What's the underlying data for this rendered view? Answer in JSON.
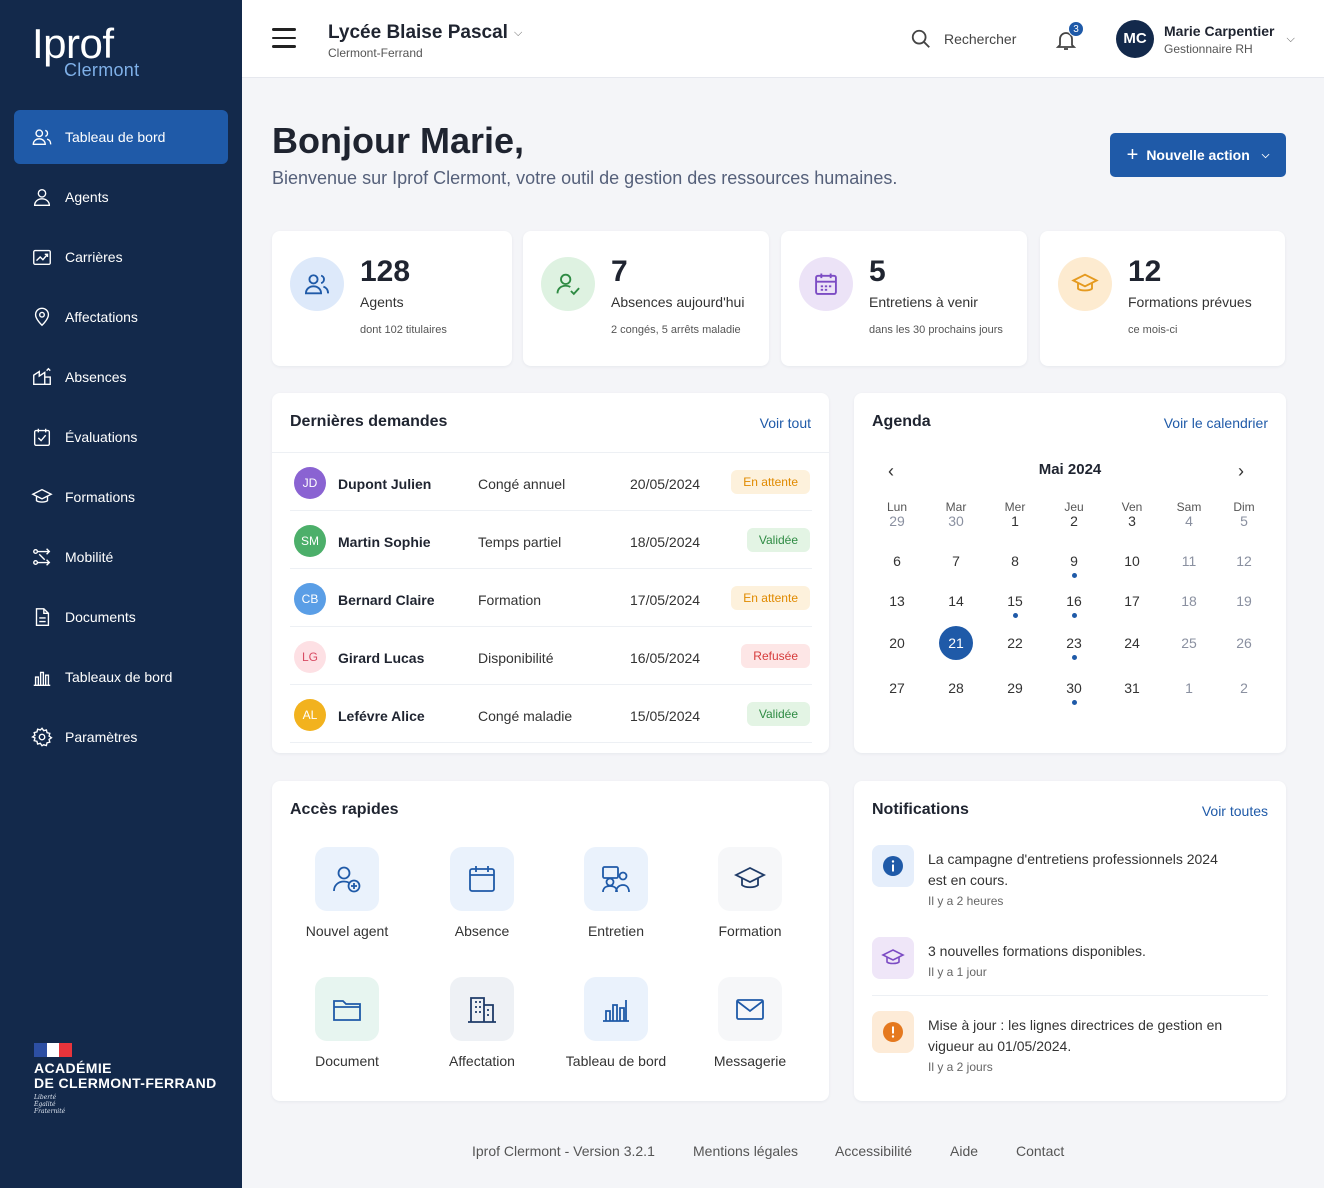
{
  "brand": {
    "name": "Iprof",
    "sub": "Clermont"
  },
  "sidebar": {
    "items": [
      {
        "label": "Tableau de bord",
        "icon": "dashboard-users-icon",
        "active": true
      },
      {
        "label": "Agents",
        "icon": "user-icon"
      },
      {
        "label": "Carrières",
        "icon": "career-chart-icon"
      },
      {
        "label": "Affectations",
        "icon": "location-pin-icon"
      },
      {
        "label": "Absences",
        "icon": "absence-icon"
      },
      {
        "label": "Évaluations",
        "icon": "evaluation-check-icon"
      },
      {
        "label": "Formations",
        "icon": "graduation-cap-icon"
      },
      {
        "label": "Mobilité",
        "icon": "mobility-arrows-icon"
      },
      {
        "label": "Documents",
        "icon": "document-icon"
      },
      {
        "label": "Tableaux de bord",
        "icon": "bar-chart-icon"
      },
      {
        "label": "Paramètres",
        "icon": "gear-icon"
      }
    ],
    "academy": {
      "line1": "ACADÉMIE",
      "line2": "DE CLERMONT-FERRAND",
      "motto": [
        "Liberté",
        "Égalité",
        "Fraternité"
      ]
    }
  },
  "header": {
    "school": "Lycée Blaise Pascal",
    "city": "Clermont-Ferrand",
    "search_label": "Rechercher",
    "notif_count": "3",
    "user": {
      "initials": "MC",
      "name": "Marie Carpentier",
      "role": "Gestionnaire RH"
    }
  },
  "main": {
    "greeting": "Bonjour Marie,",
    "subtitle": "Bienvenue sur Iprof Clermont, votre outil de gestion des ressources humaines.",
    "new_action": "Nouvelle action"
  },
  "stats": [
    {
      "value": "128",
      "label": "Agents",
      "note": "dont 102 titulaires",
      "bg": "#dde9fa",
      "fg": "#1f5aa8"
    },
    {
      "value": "7",
      "label": "Absences aujourd'hui",
      "note": "2 congés, 5 arrêts maladie",
      "bg": "#def2e1",
      "fg": "#2e8b43"
    },
    {
      "value": "5",
      "label": "Entretiens à venir",
      "note": "dans les 30 prochains jours",
      "bg": "#ece3f7",
      "fg": "#7c4cc4"
    },
    {
      "value": "12",
      "label": "Formations prévues",
      "note": "ce mois-ci",
      "bg": "#fdebd0",
      "fg": "#e59a1f"
    }
  ],
  "requests": {
    "title": "Dernières demandes",
    "link": "Voir tout",
    "rows": [
      {
        "initials": "JD",
        "name": "Dupont Julien",
        "type": "Congé annuel",
        "date": "20/05/2024",
        "status": "En attente",
        "av_color": "#8a63d2",
        "st_bg": "#fdf1dc",
        "st_fg": "#e08a00"
      },
      {
        "initials": "SM",
        "name": "Martin Sophie",
        "type": "Temps partiel",
        "date": "18/05/2024",
        "status": "Validée",
        "av_color": "#4caf6a",
        "st_bg": "#e3f4e4",
        "st_fg": "#2e8b43"
      },
      {
        "initials": "CB",
        "name": "Bernard Claire",
        "type": "Formation",
        "date": "17/05/2024",
        "status": "En attente",
        "av_color": "#5a9ee6",
        "st_bg": "#fdf1dc",
        "st_fg": "#e08a00"
      },
      {
        "initials": "LG",
        "name": "Girard Lucas",
        "type": "Disponibilité",
        "date": "16/05/2024",
        "status": "Refusée",
        "av_color": "#ef7f8f",
        "st_bg": "#fde6e6",
        "st_fg": "#d63b3b"
      },
      {
        "initials": "AL",
        "name": "Lefévre Alice",
        "type": "Congé maladie",
        "date": "15/05/2024",
        "status": "Validée",
        "av_color": "#f2b21e",
        "st_bg": "#e3f4e4",
        "st_fg": "#2e8b43"
      }
    ]
  },
  "agenda": {
    "title": "Agenda",
    "link": "Voir le calendrier",
    "month": "Mai 2024",
    "weekdays": [
      "Lun",
      "Mar",
      "Mer",
      "Jeu",
      "Ven",
      "Sam",
      "Dim"
    ],
    "weeks": [
      [
        "29",
        "30",
        "1",
        "2",
        "3",
        "4",
        "5"
      ],
      [
        "6",
        "7",
        "8",
        "9",
        "10",
        "11",
        "12"
      ],
      [
        "13",
        "14",
        "15",
        "16",
        "17",
        "18",
        "19"
      ],
      [
        "20",
        "21",
        "22",
        "23",
        "24",
        "25",
        "26"
      ],
      [
        "27",
        "28",
        "29",
        "30",
        "31",
        "1",
        "2"
      ]
    ],
    "muted": [
      "0-0",
      "0-1",
      "4-5",
      "4-6"
    ],
    "weekend_days": [
      5,
      6
    ],
    "today": "3-1",
    "events": [
      "1-3",
      "2-2",
      "2-3",
      "3-3",
      "4-3"
    ]
  },
  "quick": {
    "title": "Accès rapides",
    "items": [
      {
        "label": "Nouvel agent",
        "icon": "add-user-icon"
      },
      {
        "label": "Absence",
        "icon": "calendar-icon"
      },
      {
        "label": "Entretien",
        "icon": "meeting-icon"
      },
      {
        "label": "Formation",
        "icon": "graduation-cap-icon"
      },
      {
        "label": "Document",
        "icon": "folder-icon"
      },
      {
        "label": "Affectation",
        "icon": "building-icon"
      },
      {
        "label": "Tableau de bord",
        "icon": "bar-chart-icon"
      },
      {
        "label": "Messagerie",
        "icon": "mail-icon"
      }
    ]
  },
  "notifications": {
    "title": "Notifications",
    "link": "Voir toutes",
    "items": [
      {
        "text": "La campagne d'entretiens professionnels 2024 est en cours.",
        "time": "Il y a 2 heures",
        "icon": "info-icon",
        "bg": "#e5eefb",
        "fg": "#1f5aa8"
      },
      {
        "text": "3 nouvelles formations disponibles.",
        "time": "Il y a 1 jour",
        "icon": "graduation-cap-icon",
        "bg": "#efe6f8",
        "fg": "#7c4cc4"
      },
      {
        "text": "Mise à jour : les lignes directrices de gestion en vigueur au 01/05/2024.",
        "time": "Il y a 2 jours",
        "icon": "warning-icon",
        "bg": "#fdebd7",
        "fg": "#e5791f"
      }
    ]
  },
  "footer": {
    "version": "Iprof Clermont - Version 3.2.1",
    "links": [
      "Mentions légales",
      "Accessibilité",
      "Aide",
      "Contact"
    ]
  }
}
